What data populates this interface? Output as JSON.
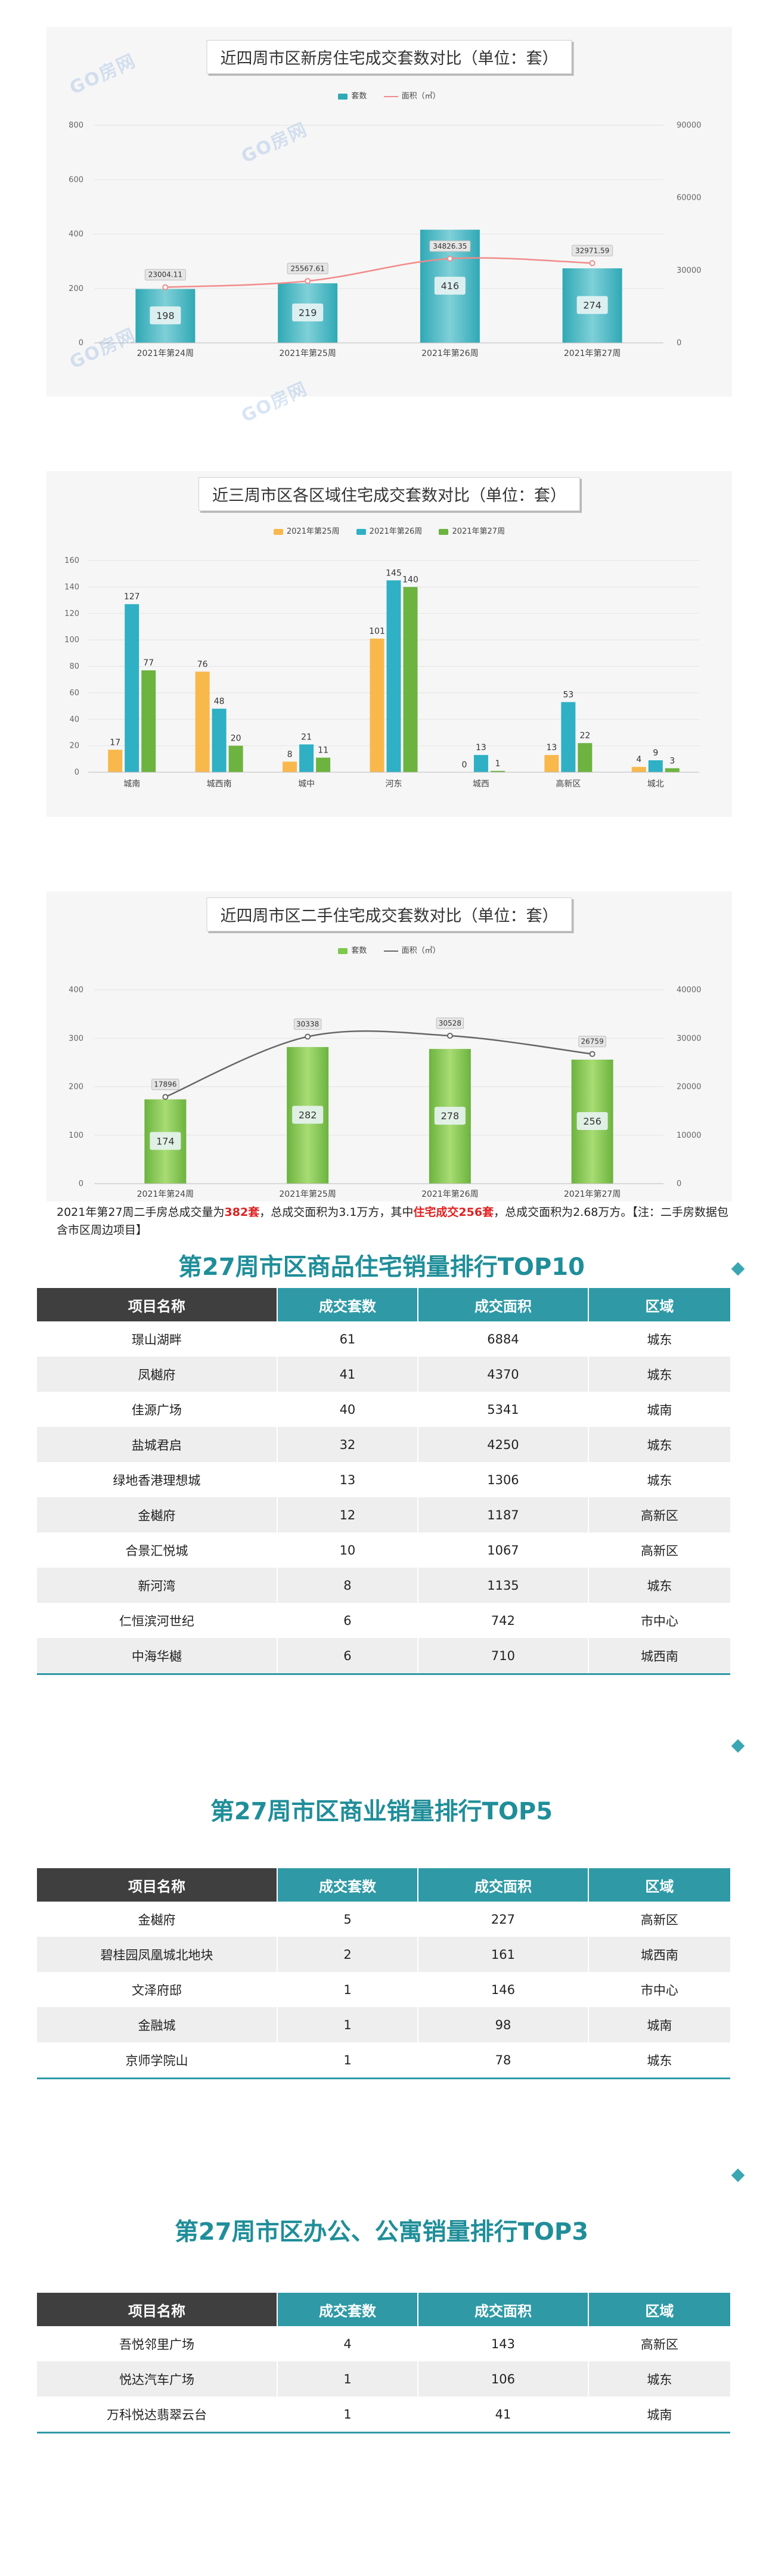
{
  "watermark": "GO房网",
  "chart_data": [
    {
      "type": "bar",
      "title": "近四周市区新房住宅成交套数对比（单位：套）",
      "categories": [
        "2021年第24周",
        "2021年第25周",
        "2021年第26周",
        "2021年第27周"
      ],
      "series": [
        {
          "name": "套数",
          "values": [
            198,
            219,
            416,
            274
          ],
          "axis": "left"
        },
        {
          "name": "面积（㎡）",
          "values": [
            23004.11,
            25567.61,
            34826.35,
            32971.59
          ],
          "axis": "right",
          "type": "line"
        }
      ],
      "y_left_ticks": [
        "0",
        "200",
        "400",
        "600",
        "800"
      ],
      "ylim_left": [
        0,
        800
      ],
      "y_right_ticks": [
        "0",
        "30000",
        "60000",
        "90000"
      ],
      "ylim_right": [
        0,
        90000
      ],
      "line_labels": [
        "23004.11",
        "25567.61",
        "34826.35",
        "32971.59"
      ],
      "colors": {
        "bar": "#2fa9b5",
        "line": "#f28b8b"
      }
    },
    {
      "type": "bar",
      "title": "近三周市区各区域住宅成交套数对比（单位：套）",
      "categories": [
        "城南",
        "城西南",
        "城中",
        "河东",
        "城西",
        "高新区",
        "城北"
      ],
      "series": [
        {
          "name": "2021年第25周",
          "values": [
            17,
            76,
            8,
            101,
            0,
            13,
            4
          ]
        },
        {
          "name": "2021年第26周",
          "values": [
            127,
            48,
            21,
            145,
            13,
            53,
            9
          ]
        },
        {
          "name": "2021年第27周",
          "values": [
            77,
            20,
            11,
            140,
            1,
            22,
            3
          ]
        }
      ],
      "y_ticks": [
        "0",
        "20",
        "40",
        "60",
        "80",
        "100",
        "120",
        "140",
        "160"
      ],
      "ylim": [
        0,
        160
      ],
      "colors": {
        "s1": "#f9b84c",
        "s2": "#2fb0c4",
        "s3": "#6cb33f"
      }
    },
    {
      "type": "bar",
      "title": "近四周市区二手住宅成交套数对比（单位：套）",
      "categories": [
        "2021年第24周",
        "2021年第25周",
        "2021年第26周",
        "2021年第27周"
      ],
      "series": [
        {
          "name": "套数",
          "values": [
            174,
            282,
            278,
            256
          ],
          "axis": "left"
        },
        {
          "name": "面积（㎡）",
          "values": [
            17896,
            30338,
            30528,
            26759
          ],
          "axis": "right",
          "type": "line"
        }
      ],
      "y_left_ticks": [
        "0",
        "100",
        "200",
        "300",
        "400"
      ],
      "ylim_left": [
        0,
        400
      ],
      "y_right_ticks": [
        "0",
        "10000",
        "20000",
        "30000",
        "40000"
      ],
      "ylim_right": [
        0,
        40000
      ],
      "line_labels": [
        "17896",
        "30338",
        "30528",
        "26759"
      ],
      "colors": {
        "bar": "#7ec84a",
        "line": "#666666"
      }
    }
  ],
  "note": {
    "p1": "2021年第27周二手房总成交量为",
    "v1": "382套",
    "p2": "，总成交面积为3.1万方，其中",
    "v2": "住宅成交256套",
    "p3": "，总成交面积为2.68万方。【注：二手房数据包含市区周边项目】"
  },
  "table_headers": [
    "项目名称",
    "成交套数",
    "成交面积",
    "区域"
  ],
  "tables": [
    {
      "title": "第27周市区商品住宅销量排行TOP10",
      "rows": [
        [
          "璟山湖畔",
          "61",
          "6884",
          "城东"
        ],
        [
          "凤樾府",
          "41",
          "4370",
          "城东"
        ],
        [
          "佳源广场",
          "40",
          "5341",
          "城南"
        ],
        [
          "盐城君启",
          "32",
          "4250",
          "城东"
        ],
        [
          "绿地香港理想城",
          "13",
          "1306",
          "城东"
        ],
        [
          "金樾府",
          "12",
          "1187",
          "高新区"
        ],
        [
          "合景汇悦城",
          "10",
          "1067",
          "高新区"
        ],
        [
          "新河湾",
          "8",
          "1135",
          "城东"
        ],
        [
          "仁恒滨河世纪",
          "6",
          "742",
          "市中心"
        ],
        [
          "中海华樾",
          "6",
          "710",
          "城西南"
        ]
      ]
    },
    {
      "title": "第27周市区商业销量排行TOP5",
      "rows": [
        [
          "金樾府",
          "5",
          "227",
          "高新区"
        ],
        [
          "碧桂园凤凰城北地块",
          "2",
          "161",
          "城西南"
        ],
        [
          "文泽府邸",
          "1",
          "146",
          "市中心"
        ],
        [
          "金融城",
          "1",
          "98",
          "城南"
        ],
        [
          "京师学院山",
          "1",
          "78",
          "城东"
        ]
      ]
    },
    {
      "title": "第27周市区办公、公寓销量排行TOP3",
      "rows": [
        [
          "吾悦邻里广场",
          "4",
          "143",
          "高新区"
        ],
        [
          "悦达汽车广场",
          "1",
          "106",
          "城东"
        ],
        [
          "万科悦达翡翠云台",
          "1",
          "41",
          "城南"
        ]
      ]
    }
  ]
}
